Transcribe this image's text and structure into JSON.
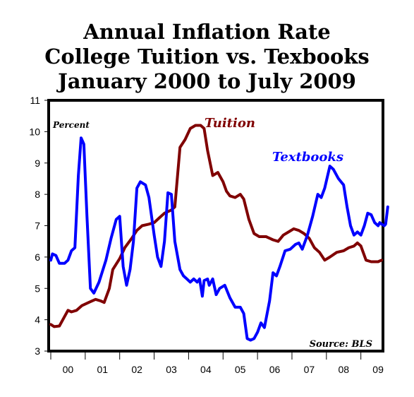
{
  "chart_data": {
    "type": "line",
    "title_lines": [
      "Annual Inflation Rate",
      "College Tuition vs. Texbooks",
      "January 2000 to July 2009"
    ],
    "ylabel": "Percent",
    "source": "Source: BLS",
    "ylim": [
      3,
      11
    ],
    "yticks": [
      3,
      4,
      5,
      6,
      7,
      8,
      9,
      10,
      11
    ],
    "xlim": [
      2000.0,
      2009.58
    ],
    "xtick_labels": [
      "00",
      "01",
      "02",
      "03",
      "04",
      "05",
      "06",
      "07",
      "08",
      "09"
    ],
    "grid": false,
    "series": [
      {
        "name": "Tuition",
        "color": "#800000",
        "points": [
          [
            2000.0,
            3.85
          ],
          [
            2000.1,
            3.78
          ],
          [
            2000.25,
            3.8
          ],
          [
            2000.4,
            4.1
          ],
          [
            2000.5,
            4.3
          ],
          [
            2000.6,
            4.25
          ],
          [
            2000.75,
            4.3
          ],
          [
            2000.9,
            4.45
          ],
          [
            2001.1,
            4.55
          ],
          [
            2001.3,
            4.65
          ],
          [
            2001.45,
            4.6
          ],
          [
            2001.55,
            4.55
          ],
          [
            2001.7,
            5.0
          ],
          [
            2001.8,
            5.6
          ],
          [
            2002.0,
            5.95
          ],
          [
            2002.15,
            6.3
          ],
          [
            2002.35,
            6.6
          ],
          [
            2002.5,
            6.85
          ],
          [
            2002.65,
            7.0
          ],
          [
            2002.85,
            7.05
          ],
          [
            2003.0,
            7.1
          ],
          [
            2003.15,
            7.25
          ],
          [
            2003.3,
            7.4
          ],
          [
            2003.5,
            7.5
          ],
          [
            2003.6,
            7.6
          ],
          [
            2003.75,
            9.5
          ],
          [
            2003.9,
            9.75
          ],
          [
            2004.05,
            10.1
          ],
          [
            2004.2,
            10.2
          ],
          [
            2004.35,
            10.2
          ],
          [
            2004.45,
            10.1
          ],
          [
            2004.55,
            9.4
          ],
          [
            2004.7,
            8.6
          ],
          [
            2004.85,
            8.7
          ],
          [
            2005.0,
            8.4
          ],
          [
            2005.1,
            8.1
          ],
          [
            2005.2,
            7.95
          ],
          [
            2005.35,
            7.9
          ],
          [
            2005.5,
            8.0
          ],
          [
            2005.6,
            7.85
          ],
          [
            2005.75,
            7.2
          ],
          [
            2005.9,
            6.75
          ],
          [
            2006.05,
            6.65
          ],
          [
            2006.25,
            6.65
          ],
          [
            2006.45,
            6.55
          ],
          [
            2006.6,
            6.5
          ],
          [
            2006.75,
            6.7
          ],
          [
            2006.9,
            6.8
          ],
          [
            2007.05,
            6.9
          ],
          [
            2007.2,
            6.85
          ],
          [
            2007.35,
            6.75
          ],
          [
            2007.5,
            6.6
          ],
          [
            2007.65,
            6.3
          ],
          [
            2007.8,
            6.15
          ],
          [
            2007.95,
            5.9
          ],
          [
            2008.1,
            6.0
          ],
          [
            2008.3,
            6.15
          ],
          [
            2008.5,
            6.2
          ],
          [
            2008.65,
            6.3
          ],
          [
            2008.8,
            6.35
          ],
          [
            2008.9,
            6.45
          ],
          [
            2009.0,
            6.35
          ],
          [
            2009.15,
            5.9
          ],
          [
            2009.3,
            5.85
          ],
          [
            2009.5,
            5.85
          ],
          [
            2009.6,
            5.9
          ]
        ]
      },
      {
        "name": "Textbooks",
        "color": "#0000ff",
        "points": [
          [
            2000.0,
            5.9
          ],
          [
            2000.05,
            6.1
          ],
          [
            2000.15,
            6.05
          ],
          [
            2000.25,
            5.8
          ],
          [
            2000.4,
            5.8
          ],
          [
            2000.5,
            5.9
          ],
          [
            2000.6,
            6.2
          ],
          [
            2000.7,
            6.3
          ],
          [
            2000.8,
            8.6
          ],
          [
            2000.88,
            9.8
          ],
          [
            2000.96,
            9.6
          ],
          [
            2001.05,
            7.3
          ],
          [
            2001.15,
            5.0
          ],
          [
            2001.25,
            4.85
          ],
          [
            2001.4,
            5.2
          ],
          [
            2001.6,
            5.9
          ],
          [
            2001.75,
            6.6
          ],
          [
            2001.9,
            7.2
          ],
          [
            2002.0,
            7.3
          ],
          [
            2002.1,
            5.7
          ],
          [
            2002.2,
            5.1
          ],
          [
            2002.3,
            5.6
          ],
          [
            2002.4,
            6.5
          ],
          [
            2002.5,
            8.2
          ],
          [
            2002.6,
            8.4
          ],
          [
            2002.75,
            8.3
          ],
          [
            2002.85,
            7.9
          ],
          [
            2003.0,
            6.7
          ],
          [
            2003.1,
            6.0
          ],
          [
            2003.2,
            5.7
          ],
          [
            2003.3,
            6.5
          ],
          [
            2003.4,
            8.05
          ],
          [
            2003.5,
            8.0
          ],
          [
            2003.6,
            6.5
          ],
          [
            2003.75,
            5.6
          ],
          [
            2003.85,
            5.4
          ],
          [
            2003.95,
            5.3
          ],
          [
            2004.05,
            5.2
          ],
          [
            2004.15,
            5.3
          ],
          [
            2004.25,
            5.2
          ],
          [
            2004.32,
            5.3
          ],
          [
            2004.4,
            4.75
          ],
          [
            2004.45,
            5.25
          ],
          [
            2004.55,
            5.3
          ],
          [
            2004.6,
            5.1
          ],
          [
            2004.7,
            5.3
          ],
          [
            2004.8,
            4.8
          ],
          [
            2004.9,
            5.0
          ],
          [
            2005.05,
            5.1
          ],
          [
            2005.2,
            4.7
          ],
          [
            2005.35,
            4.4
          ],
          [
            2005.5,
            4.4
          ],
          [
            2005.6,
            4.2
          ],
          [
            2005.7,
            3.4
          ],
          [
            2005.8,
            3.35
          ],
          [
            2005.9,
            3.4
          ],
          [
            2006.0,
            3.6
          ],
          [
            2006.1,
            3.9
          ],
          [
            2006.2,
            3.75
          ],
          [
            2006.35,
            4.6
          ],
          [
            2006.45,
            5.5
          ],
          [
            2006.55,
            5.4
          ],
          [
            2006.65,
            5.7
          ],
          [
            2006.8,
            6.2
          ],
          [
            2006.95,
            6.25
          ],
          [
            2007.1,
            6.4
          ],
          [
            2007.2,
            6.45
          ],
          [
            2007.3,
            6.25
          ],
          [
            2007.45,
            6.7
          ],
          [
            2007.6,
            7.3
          ],
          [
            2007.75,
            8.0
          ],
          [
            2007.85,
            7.9
          ],
          [
            2007.95,
            8.2
          ],
          [
            2008.1,
            8.9
          ],
          [
            2008.2,
            8.8
          ],
          [
            2008.35,
            8.5
          ],
          [
            2008.5,
            8.3
          ],
          [
            2008.6,
            7.6
          ],
          [
            2008.7,
            7.0
          ],
          [
            2008.8,
            6.7
          ],
          [
            2008.9,
            6.8
          ],
          [
            2009.0,
            6.7
          ],
          [
            2009.1,
            7.0
          ],
          [
            2009.2,
            7.4
          ],
          [
            2009.3,
            7.35
          ],
          [
            2009.4,
            7.1
          ],
          [
            2009.5,
            7.0
          ],
          [
            2009.55,
            7.1
          ],
          [
            2009.6,
            7.05
          ],
          [
            2009.68,
            7.0
          ],
          [
            2009.72,
            7.05
          ],
          [
            2009.78,
            7.6
          ]
        ]
      }
    ]
  }
}
